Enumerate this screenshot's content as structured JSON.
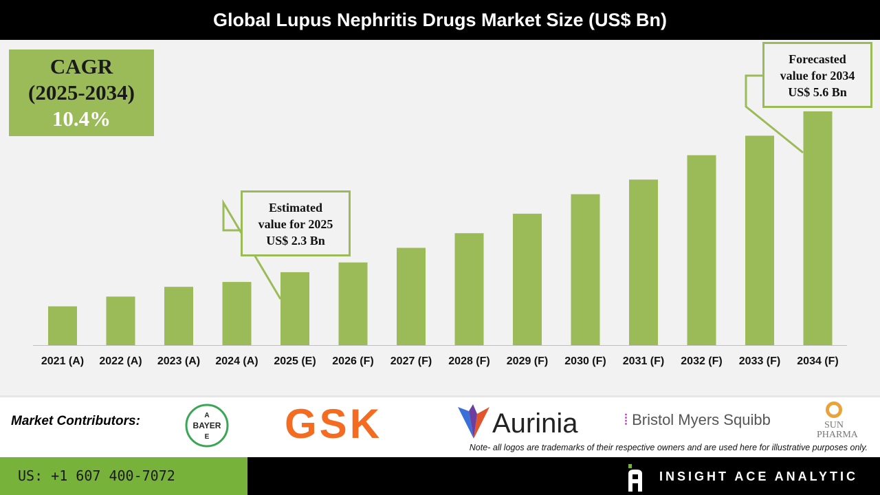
{
  "title": "Global Lupus Nephritis Drugs Market Size (US$ Bn)",
  "cagr": {
    "label": "CAGR",
    "period": "(2025-2034)",
    "value": "10.4%"
  },
  "callouts": {
    "estimated": {
      "line1": "Estimated",
      "line2": "value for 2025",
      "line3": "US$ 2.3 Bn"
    },
    "forecast": {
      "line1": "Forecasted",
      "line2": "value for 2034",
      "line3": "US$ 5.6 Bn"
    }
  },
  "chart_data": {
    "type": "bar",
    "title": "Global Lupus Nephritis Drugs Market Size (US$ Bn)",
    "categories": [
      "2021 (A)",
      "2022 (A)",
      "2023 (A)",
      "2024 (A)",
      "2025 (E)",
      "2026 (F)",
      "2027 (F)",
      "2028 (F)",
      "2029 (F)",
      "2030 (F)",
      "2031 (F)",
      "2032 (F)",
      "2033 (F)",
      "2034 (F)"
    ],
    "values": [
      1.6,
      1.8,
      2.0,
      2.1,
      2.3,
      2.5,
      2.8,
      3.1,
      3.5,
      3.9,
      4.2,
      4.7,
      5.1,
      5.6
    ],
    "xlabel": "",
    "ylabel": "",
    "grid": false,
    "bar_color": "#9bbb59"
  },
  "footer": {
    "contributors_label": "Market Contributors:",
    "logos": [
      "BAYER",
      "GSK",
      "Aurinia",
      "Bristol Myers Squibb",
      "SUN PHARMA"
    ],
    "note": "Note- all logos are trademarks of their respective owners and are used here for illustrative purposes only.",
    "phone": "US: +1 607 400-7072",
    "brand": "INSIGHT ACE ANALYTIC"
  }
}
